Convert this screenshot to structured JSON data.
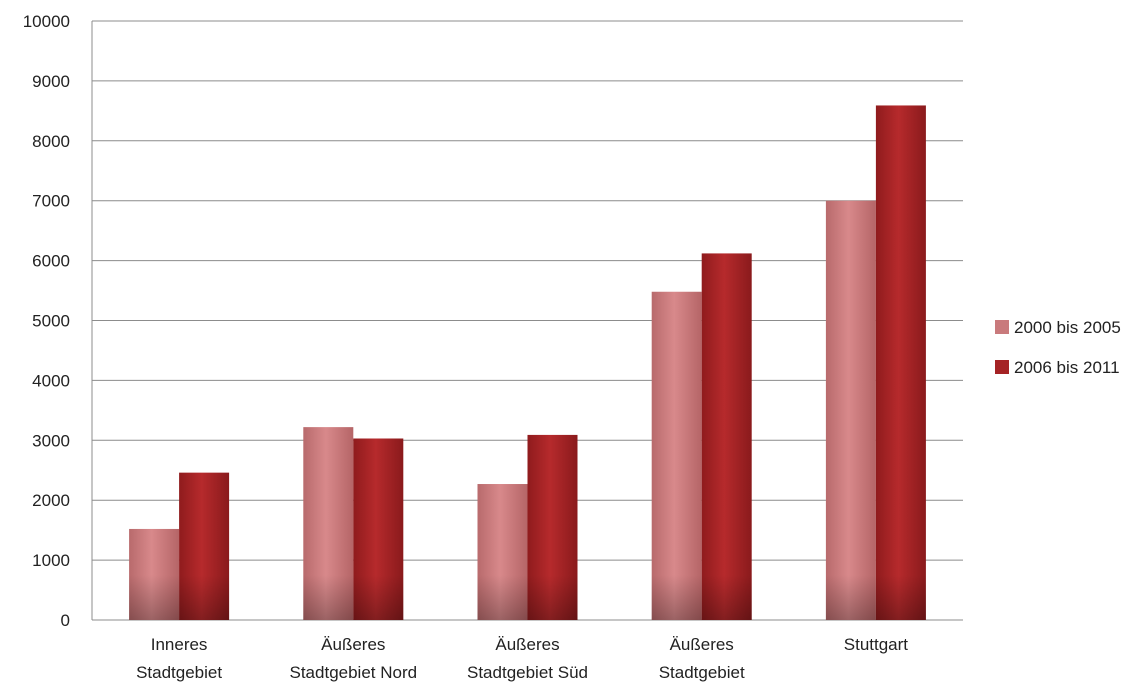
{
  "chart_data": {
    "type": "bar",
    "title": "",
    "xlabel": "",
    "ylabel": "",
    "categories": [
      [
        "Inneres",
        "Stadtgebiet"
      ],
      [
        "Äußeres",
        "Stadtgebiet Nord"
      ],
      [
        "Äußeres",
        "Stadtgebiet Süd"
      ],
      [
        "Äußeres",
        "Stadtgebiet"
      ],
      [
        "Stuttgart"
      ]
    ],
    "series": [
      {
        "name": "2000 bis 2005",
        "color": "#c97a7c",
        "values": [
          1520,
          3220,
          2270,
          5480,
          7000
        ]
      },
      {
        "name": "2006 bis 2011",
        "color": "#a52325",
        "values": [
          2460,
          3030,
          3090,
          6120,
          8590
        ]
      }
    ],
    "ylim": [
      0,
      10000
    ],
    "yticks": [
      0,
      1000,
      2000,
      3000,
      4000,
      5000,
      6000,
      7000,
      8000,
      9000,
      10000
    ],
    "grid": true,
    "legend": "right"
  }
}
